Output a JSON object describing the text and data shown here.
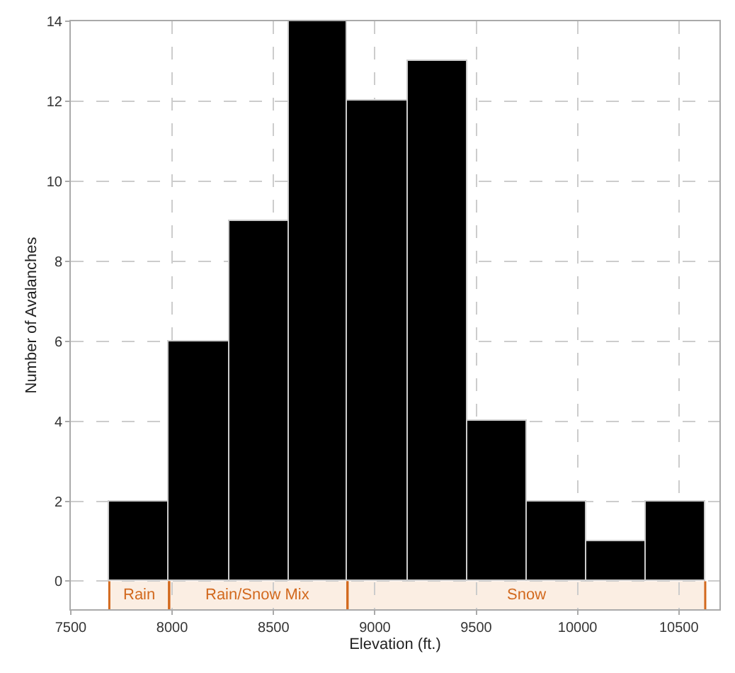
{
  "chart_data": {
    "type": "histogram",
    "xlabel": "Elevation (ft.)",
    "ylabel": "Number of Avalanches",
    "bins": [
      7690,
      7985,
      8280,
      8575,
      8865,
      9160,
      9455,
      9750,
      10040,
      10335,
      10630
    ],
    "values": [
      2,
      6,
      9,
      14,
      12,
      13,
      4,
      2,
      1,
      2
    ],
    "color": "#000000",
    "xlim": [
      7500,
      10700
    ],
    "xticks": [
      7500,
      8000,
      8500,
      9000,
      9500,
      10000,
      10500
    ],
    "ylim": [
      -0.7,
      14
    ],
    "yticks": [
      0,
      2,
      4,
      6,
      8,
      10,
      12,
      14
    ],
    "grid": true,
    "bands": [
      {
        "axis": "x",
        "from": 7690,
        "to": 7985,
        "label": "Rain",
        "color": "#fbeee3"
      },
      {
        "axis": "x",
        "from": 7985,
        "to": 8865,
        "label": "Rain/Snow Mix",
        "color": "#fbeee3"
      },
      {
        "axis": "x",
        "from": 8865,
        "to": 10630,
        "label": "Snow",
        "color": "#fbeee3"
      }
    ]
  }
}
